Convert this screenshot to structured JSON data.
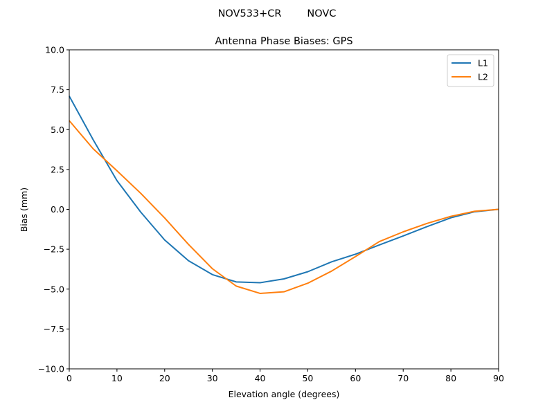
{
  "chart_data": {
    "type": "line",
    "suptitle": "NOV533+CR        NOVC",
    "title": "Antenna Phase Biases: GPS",
    "xlabel": "Elevation angle (degrees)",
    "ylabel": "Bias (mm)",
    "xlim": [
      0,
      90
    ],
    "ylim": [
      -10,
      10
    ],
    "xticks": [
      0,
      10,
      20,
      30,
      40,
      50,
      60,
      70,
      80,
      90
    ],
    "xtick_labels": [
      "0",
      "10",
      "20",
      "30",
      "40",
      "50",
      "60",
      "70",
      "80",
      "90"
    ],
    "yticks": [
      10,
      7.5,
      5,
      2.5,
      0,
      -2.5,
      -5,
      -7.5,
      -10
    ],
    "ytick_labels": [
      "10.0",
      "7.5",
      "5.0",
      "2.5",
      "0.0",
      "−2.5",
      "−5.0",
      "−7.5",
      "−10.0"
    ],
    "grid": false,
    "legend_position": "top-right",
    "x": [
      0,
      5,
      10,
      15,
      20,
      25,
      30,
      35,
      40,
      45,
      50,
      55,
      60,
      65,
      70,
      75,
      80,
      85,
      90
    ],
    "series": [
      {
        "name": "L1",
        "color": "#1f77b4",
        "values": [
          7.1,
          4.37,
          1.8,
          -0.18,
          -1.92,
          -3.22,
          -4.09,
          -4.55,
          -4.6,
          -4.36,
          -3.91,
          -3.29,
          -2.81,
          -2.23,
          -1.67,
          -1.08,
          -0.53,
          -0.15,
          0.0
        ]
      },
      {
        "name": "L2",
        "color": "#ff7f0e",
        "values": [
          5.56,
          3.8,
          2.42,
          1.0,
          -0.54,
          -2.2,
          -3.72,
          -4.81,
          -5.27,
          -5.17,
          -4.63,
          -3.87,
          -2.96,
          -2.02,
          -1.41,
          -0.88,
          -0.44,
          -0.12,
          0.0
        ]
      }
    ]
  }
}
